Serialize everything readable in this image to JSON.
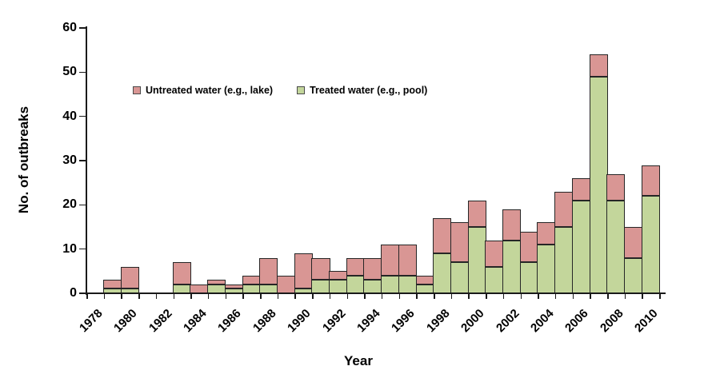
{
  "chart_data": {
    "type": "bar",
    "stacked": true,
    "title": "",
    "xlabel": "Year",
    "ylabel": "No. of outbreaks",
    "ylim": [
      0,
      60
    ],
    "yticks": [
      0,
      10,
      20,
      30,
      40,
      50,
      60
    ],
    "grid": false,
    "legend_position": "top-left-inset",
    "axis_color": "#1a1a1a",
    "bar_border_color": "#262626",
    "years": [
      1978,
      1979,
      1980,
      1981,
      1982,
      1983,
      1984,
      1985,
      1986,
      1987,
      1988,
      1989,
      1990,
      1991,
      1992,
      1993,
      1994,
      1995,
      1996,
      1997,
      1998,
      1999,
      2000,
      2001,
      2002,
      2003,
      2004,
      2005,
      2006,
      2007,
      2008,
      2009,
      2010
    ],
    "xtick_labels": [
      "1978",
      "1980",
      "1982",
      "1984",
      "1986",
      "1988",
      "1990",
      "1992",
      "1994",
      "1996",
      "1998",
      "2000",
      "2002",
      "2004",
      "2006",
      "2008",
      "2010"
    ],
    "series": [
      {
        "name": "Untreated water (e.g., lake)",
        "color": "#d99694",
        "stack_order": "top",
        "values": [
          0,
          2,
          5,
          0,
          0,
          5,
          2,
          1,
          1,
          2,
          6,
          4,
          8,
          5,
          2,
          4,
          5,
          7,
          7,
          2,
          8,
          9,
          6,
          6,
          7,
          7,
          5,
          8,
          5,
          5,
          6,
          7,
          7
        ]
      },
      {
        "name": "Treated water (e.g., pool)",
        "color": "#c3d69b",
        "stack_order": "bottom",
        "values": [
          0,
          1,
          1,
          0,
          0,
          2,
          0,
          2,
          1,
          2,
          2,
          0,
          1,
          3,
          3,
          4,
          3,
          4,
          4,
          2,
          9,
          7,
          15,
          6,
          12,
          7,
          11,
          15,
          21,
          49,
          21,
          8,
          22
        ]
      }
    ]
  }
}
